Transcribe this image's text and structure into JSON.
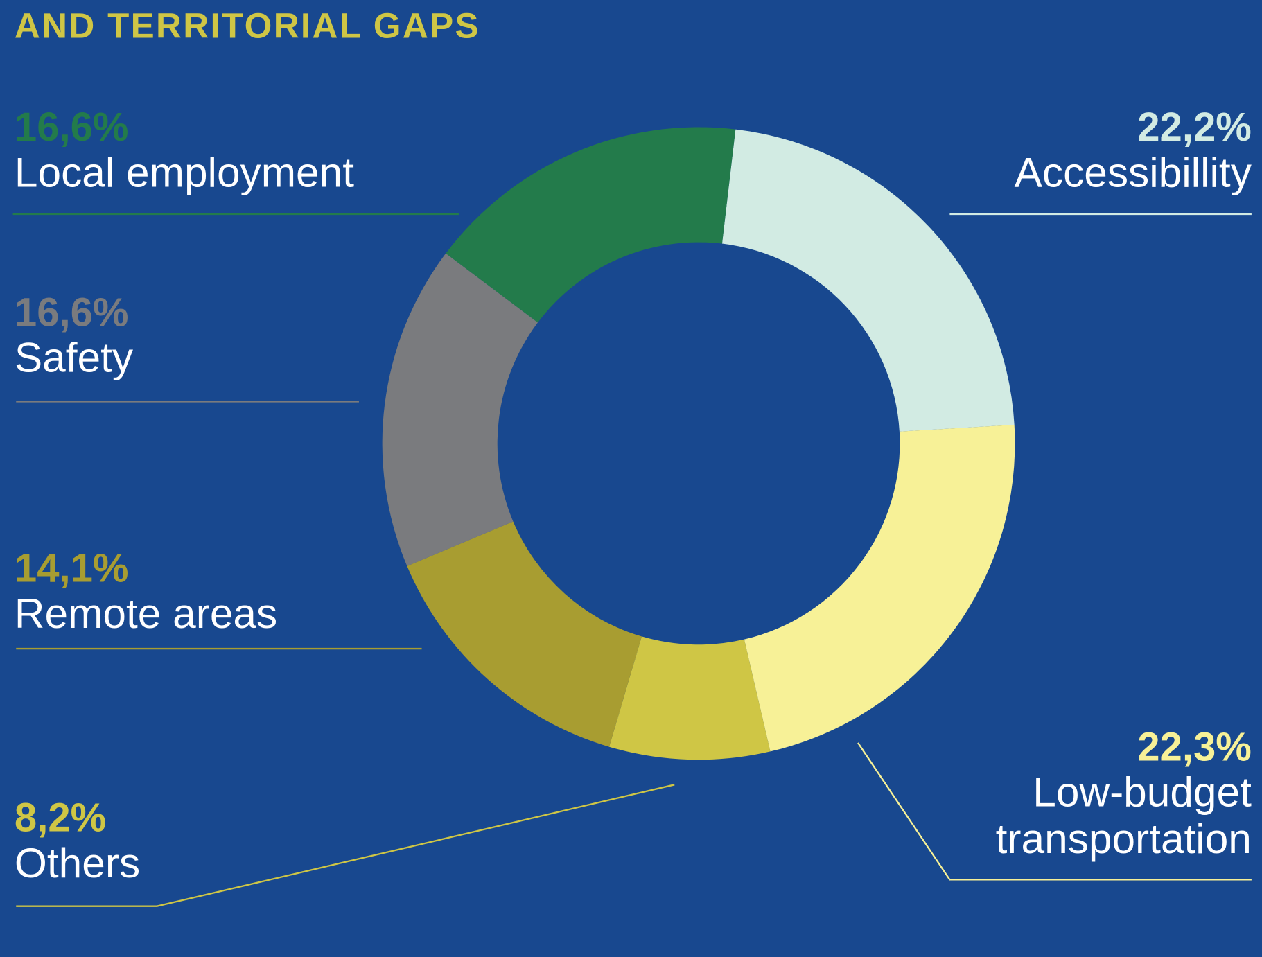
{
  "chart_data": {
    "type": "donut",
    "title": "AND TERRITORIAL GAPS",
    "categories": [
      "Accessibillity",
      "Low-budget transportation",
      "Others",
      "Remote areas",
      "Safety",
      "Local employment"
    ],
    "values": [
      22.2,
      22.3,
      8.2,
      14.1,
      16.6,
      16.6
    ],
    "value_labels": [
      "22,2%",
      "22,3%",
      "8,2%",
      "14,1%",
      "16,6%",
      "16,6%"
    ],
    "colors": [
      "#d2ebe3",
      "#f7f197",
      "#cfc645",
      "#a89d31",
      "#7a7b7e",
      "#237b4b"
    ]
  }
}
